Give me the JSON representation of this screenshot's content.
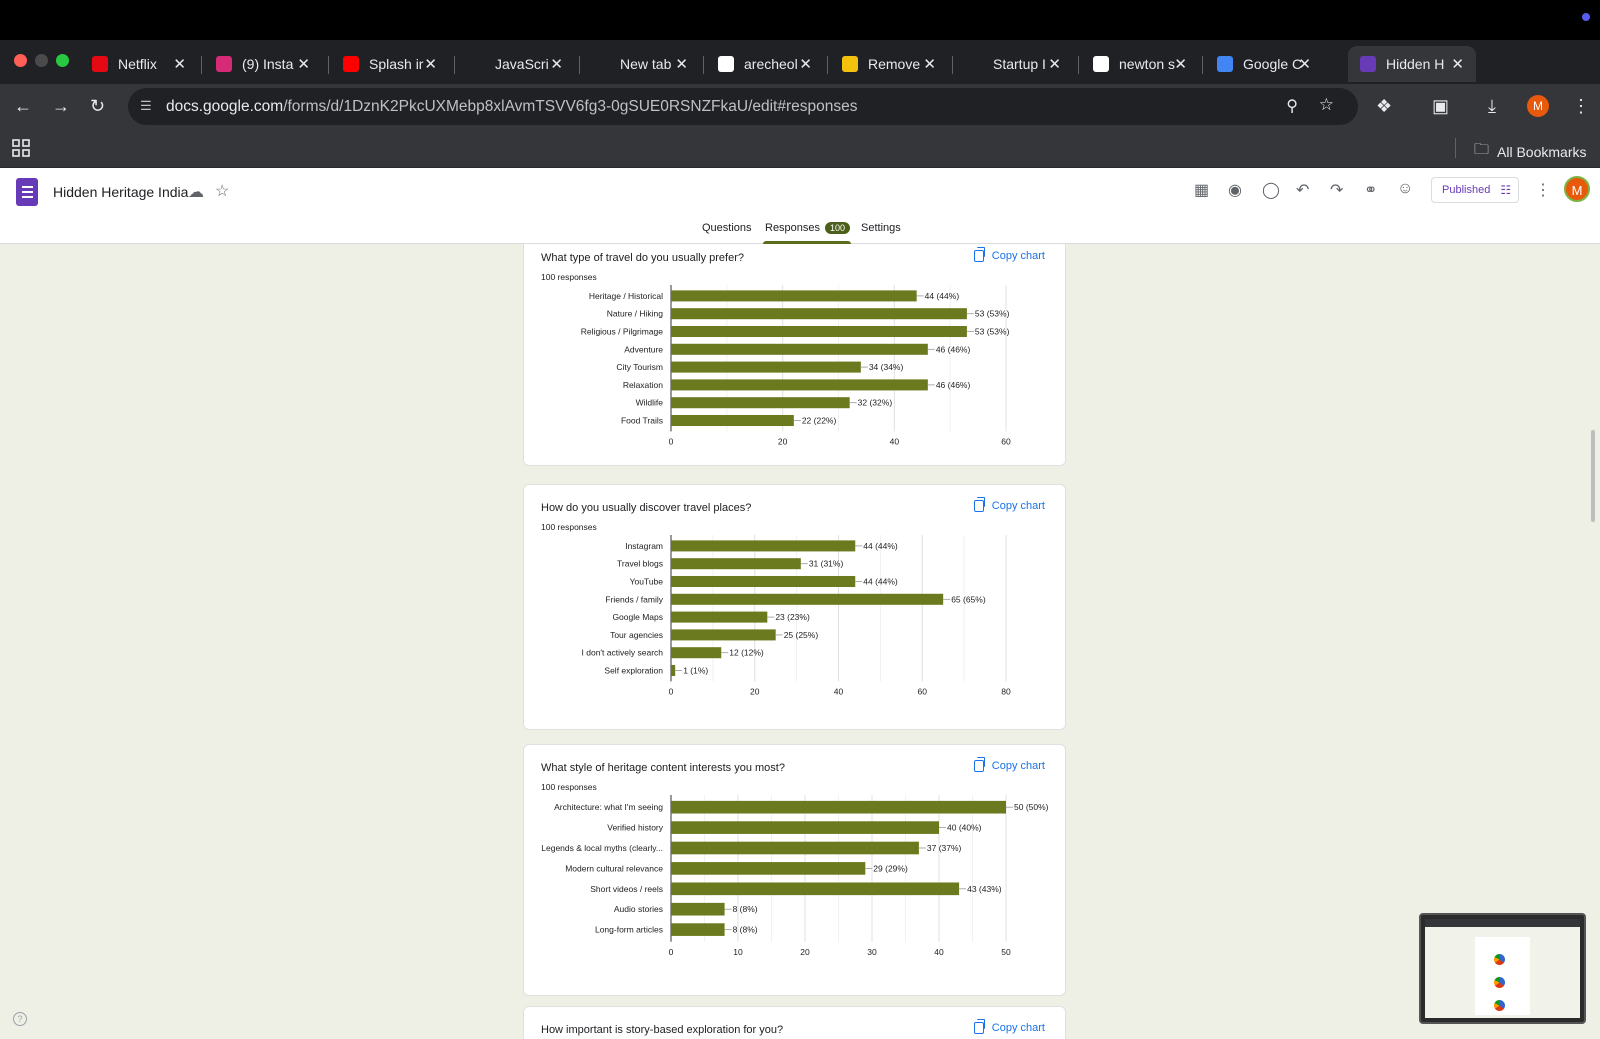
{
  "browser": {
    "tabs": [
      {
        "title": "Netflix",
        "favicon": "netflix-icon",
        "color": "#e50914"
      },
      {
        "title": "(9) Insta",
        "favicon": "instagram-icon",
        "color": "#d62976"
      },
      {
        "title": "Splash ir",
        "favicon": "youtube-icon",
        "color": "#ff0000"
      },
      {
        "title": "JavaScri",
        "favicon": "openai-icon",
        "color": "#202124"
      },
      {
        "title": "New tab",
        "favicon": "chrome-icon",
        "color": "#202124"
      },
      {
        "title": "arecheol",
        "favicon": "google-icon",
        "color": "#ffffff"
      },
      {
        "title": "Remove",
        "favicon": "remove-bg-icon",
        "color": "#f4c20d"
      },
      {
        "title": "Startup I",
        "favicon": "openai-icon",
        "color": "#202124"
      },
      {
        "title": "newton s",
        "favicon": "google-icon",
        "color": "#ffffff"
      },
      {
        "title": "Google C",
        "favicon": "gemini-icon",
        "color": "#4285f4"
      },
      {
        "title": "Hidden H",
        "favicon": "google-forms-icon",
        "color": "#673ab7",
        "active": true
      }
    ],
    "url_host": "docs.google.com",
    "url_path": "/forms/d/1DznK2PkcUXMebp8xlAvmTSVV6fg3-0gSUE0RSNZFkaU/edit#responses",
    "profile_initial": "M",
    "all_bookmarks": "All Bookmarks"
  },
  "forms": {
    "title": "Hidden Heritage India",
    "published": "Published",
    "avatar_initial": "M",
    "tabs": {
      "questions": "Questions",
      "responses": "Responses",
      "responses_count": "100",
      "settings": "Settings"
    }
  },
  "questions": [
    {
      "title": "What type of travel do you usually prefer?",
      "responses": "100 responses",
      "copy": "Copy chart",
      "chart_data": {
        "type": "bar",
        "orientation": "horizontal",
        "categories": [
          "Heritage / Historical",
          "Nature / Hiking",
          "Religious / Pilgrimage",
          "Adventure",
          "City Tourism",
          "Relaxation",
          "Wildlife",
          "Food Trails"
        ],
        "values": [
          44,
          53,
          53,
          46,
          34,
          46,
          32,
          22
        ],
        "data_labels": [
          "44 (44%)",
          "53 (53%)",
          "53 (53%)",
          "46 (46%)",
          "34 (34%)",
          "46 (46%)",
          "32 (32%)",
          "22 (22%)"
        ],
        "xlim": [
          0,
          60
        ],
        "ticks": [
          0,
          20,
          40,
          60
        ],
        "bar_color": "#6b7a1e"
      }
    },
    {
      "title": "How do you usually discover travel places?",
      "responses": "100 responses",
      "copy": "Copy chart",
      "chart_data": {
        "type": "bar",
        "orientation": "horizontal",
        "categories": [
          "Instagram",
          "Travel blogs",
          "YouTube",
          "Friends / family",
          "Google Maps",
          "Tour agencies",
          "I don't actively search",
          "Self exploration"
        ],
        "values": [
          44,
          31,
          44,
          65,
          23,
          25,
          12,
          1
        ],
        "data_labels": [
          "44 (44%)",
          "31 (31%)",
          "44 (44%)",
          "65 (65%)",
          "23 (23%)",
          "25 (25%)",
          "12 (12%)",
          "1 (1%)"
        ],
        "xlim": [
          0,
          80
        ],
        "ticks": [
          0,
          20,
          40,
          60,
          80
        ],
        "bar_color": "#6b7a1e"
      }
    },
    {
      "title": "What style of heritage content interests you most?",
      "responses": "100 responses",
      "copy": "Copy chart",
      "chart_data": {
        "type": "bar",
        "orientation": "horizontal",
        "categories": [
          "Architecture: what I'm seeing",
          "Verified history",
          "Legends & local myths (clearly...",
          "Modern cultural relevance",
          "Short videos / reels",
          "Audio stories",
          "Long-form articles"
        ],
        "values": [
          50,
          40,
          37,
          29,
          43,
          8,
          8
        ],
        "data_labels": [
          "50 (50%)",
          "40 (40%)",
          "37 (37%)",
          "29 (29%)",
          "43 (43%)",
          "8 (8%)",
          "8 (8%)"
        ],
        "xlim": [
          0,
          50
        ],
        "ticks": [
          0,
          10,
          20,
          30,
          40,
          50
        ],
        "bar_color": "#6b7a1e"
      }
    },
    {
      "title": "How important is story-based exploration for you?",
      "copy": "Copy chart"
    }
  ]
}
